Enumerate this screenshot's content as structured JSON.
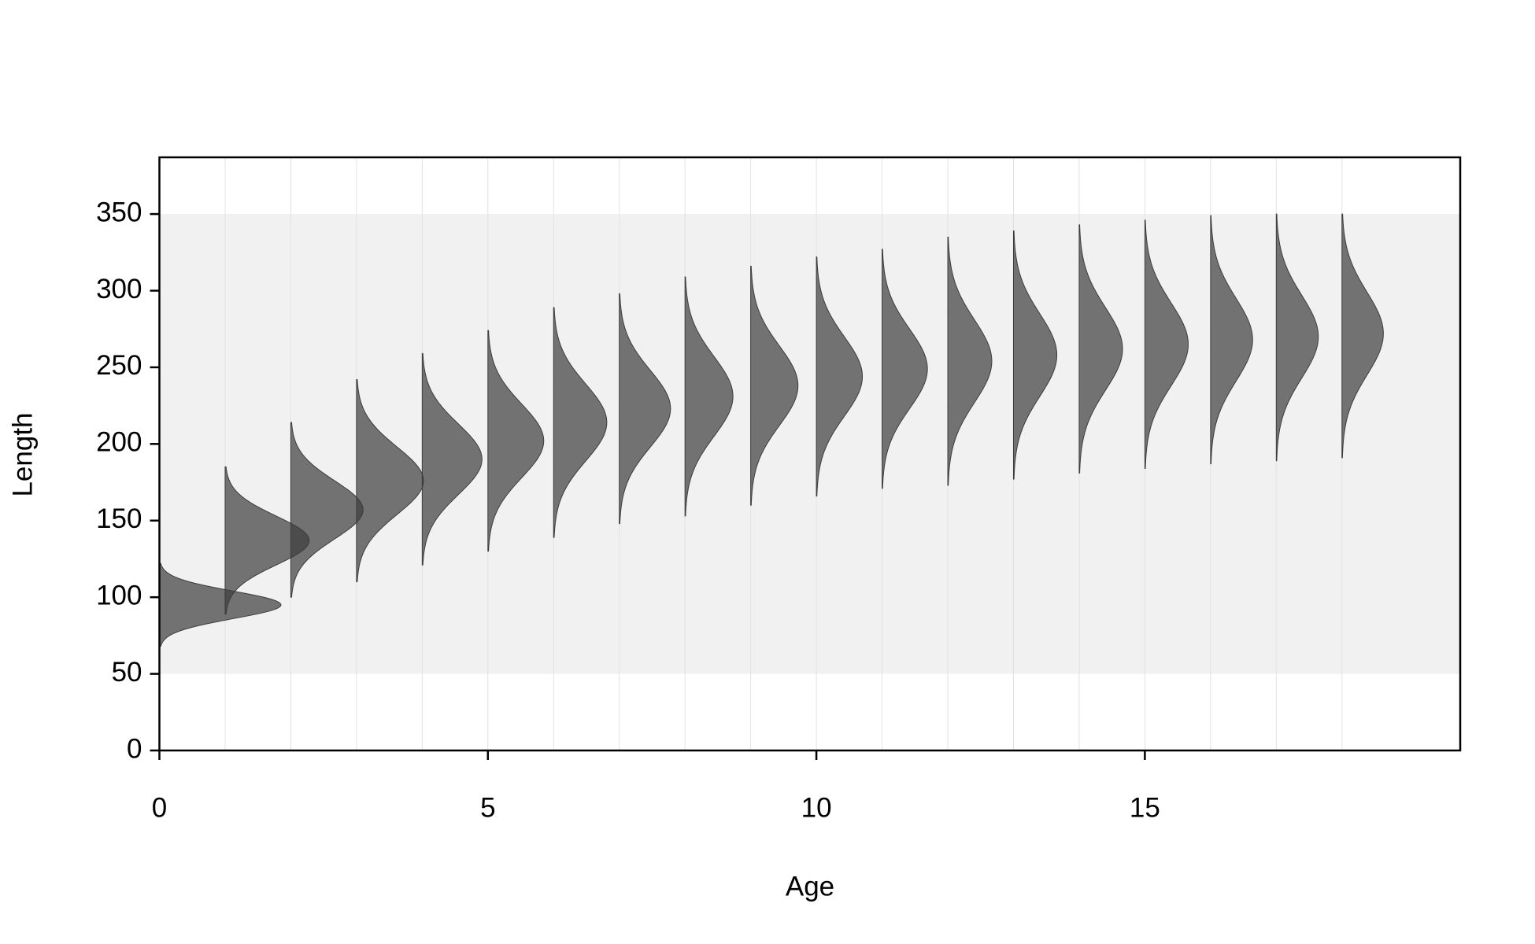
{
  "chart_data": {
    "type": "density",
    "xlabel": "Age",
    "ylabel": "Length",
    "x": [
      0,
      1,
      2,
      3,
      4,
      5,
      6,
      7,
      8,
      9,
      10,
      11,
      12,
      13,
      14,
      15,
      16,
      17,
      18
    ],
    "mean": [
      95,
      137,
      157,
      176,
      190,
      202,
      214,
      223,
      231,
      238,
      244,
      249,
      254,
      258,
      262,
      265,
      268,
      270,
      272
    ],
    "sd": [
      9,
      16,
      19,
      22,
      23,
      24,
      25,
      25,
      26,
      26,
      26,
      26,
      27,
      27,
      27,
      27,
      27,
      27,
      27
    ],
    "peak": [
      1.85,
      1.28,
      1.1,
      1.02,
      0.91,
      0.85,
      0.81,
      0.78,
      0.73,
      0.72,
      0.7,
      0.69,
      0.67,
      0.66,
      0.66,
      0.66,
      0.64,
      0.64,
      0.63
    ],
    "color": "#3c3c3c",
    "band": [
      50,
      350
    ],
    "xlim": [
      0,
      19.8
    ],
    "ylim": [
      0,
      387
    ],
    "xticks": [
      0,
      5,
      10,
      15
    ],
    "yticks": [
      0,
      50,
      100,
      150,
      200,
      250,
      300,
      350
    ],
    "grid": true
  }
}
